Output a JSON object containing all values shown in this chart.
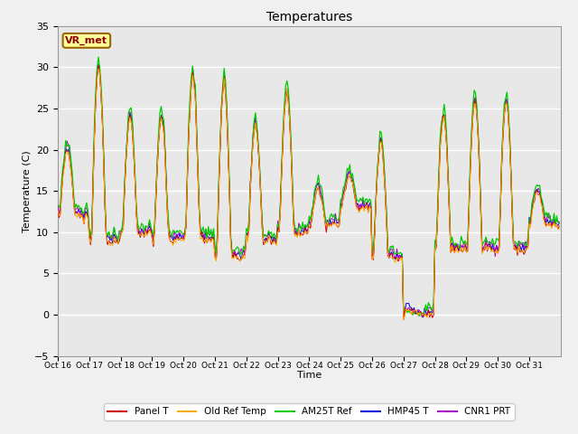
{
  "title": "Temperatures",
  "xlabel": "Time",
  "ylabel": "Temperature (C)",
  "ylim": [
    -5,
    35
  ],
  "yticks": [
    -5,
    0,
    5,
    10,
    15,
    20,
    25,
    30,
    35
  ],
  "xtick_labels": [
    "Oct 16",
    "Oct 17",
    "Oct 18",
    "Oct 19",
    "Oct 20",
    "Oct 21",
    "Oct 22",
    "Oct 23",
    "Oct 24",
    "Oct 25",
    "Oct 26",
    "Oct 27",
    "Oct 28",
    "Oct 29",
    "Oct 30",
    "Oct 31"
  ],
  "annotation_text": "VR_met",
  "colors": {
    "Panel T": "#cc0000",
    "Old Ref Temp": "#ffaa00",
    "AM25T Ref": "#00cc00",
    "HMP45 T": "#0000dd",
    "CNR1 PRT": "#aa00cc"
  },
  "background_color": "#e8e8e8",
  "fig_background": "#f0f0f0",
  "grid_color": "#ffffff",
  "legend_labels": [
    "Panel T",
    "Old Ref Temp",
    "AM25T Ref",
    "HMP45 T",
    "CNR1 PRT"
  ],
  "day_amps": [
    8,
    21,
    14,
    15,
    20,
    21,
    14,
    17,
    4,
    4,
    14,
    2,
    16,
    18,
    18,
    4
  ],
  "day_bases": [
    12,
    9,
    10,
    9,
    9,
    7,
    9,
    10,
    11,
    13,
    7,
    0,
    8,
    8,
    8,
    11
  ]
}
